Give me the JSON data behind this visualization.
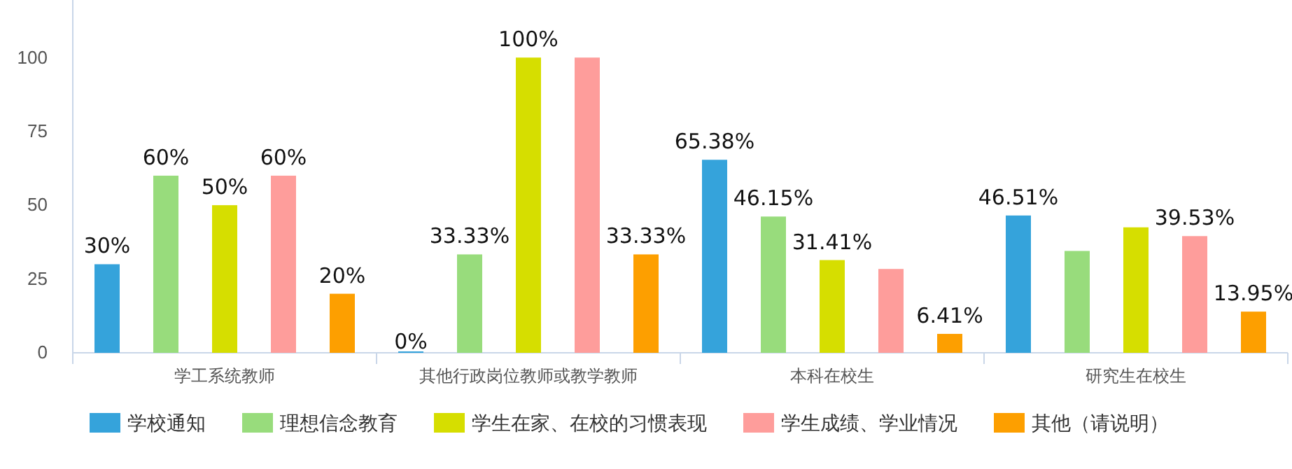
{
  "chart_data": {
    "type": "bar",
    "categories": [
      "学工系统教师",
      "其他行政岗位教师或教学教师",
      "本科在校生",
      "研究生在校生"
    ],
    "series": [
      {
        "name": "学校通知",
        "color": "#35a3db",
        "values": [
          30,
          0,
          65.38,
          46.51
        ],
        "value_labels": [
          "30%",
          "0%",
          "65.38%",
          "46.51%"
        ]
      },
      {
        "name": "理想信念教育",
        "color": "#98dc7c",
        "values": [
          60,
          33.33,
          46.15,
          34.5
        ],
        "value_labels": [
          "60%",
          "33.33%",
          "46.15%",
          null
        ]
      },
      {
        "name": "学生在家、在校的习惯表现",
        "color": "#d6de00",
        "values": [
          50,
          100,
          31.41,
          42.5
        ],
        "value_labels": [
          "50%",
          "100%",
          "31.41%",
          null
        ]
      },
      {
        "name": "学生成绩、学业情况",
        "color": "#fe9d9b",
        "values": [
          60,
          100,
          28.4,
          39.53
        ],
        "value_labels": [
          "60%",
          null,
          null,
          "39.53%"
        ]
      },
      {
        "name": "其他（请说明）",
        "color": "#fd9f00",
        "values": [
          20,
          33.33,
          6.41,
          13.95
        ],
        "value_labels": [
          "20%",
          "33.33%",
          "6.41%",
          "13.95%"
        ]
      }
    ],
    "ylim": [
      0,
      119.5
    ],
    "yticks": [
      0,
      25,
      50,
      75,
      100
    ],
    "grid": false,
    "legend": "bottom"
  }
}
